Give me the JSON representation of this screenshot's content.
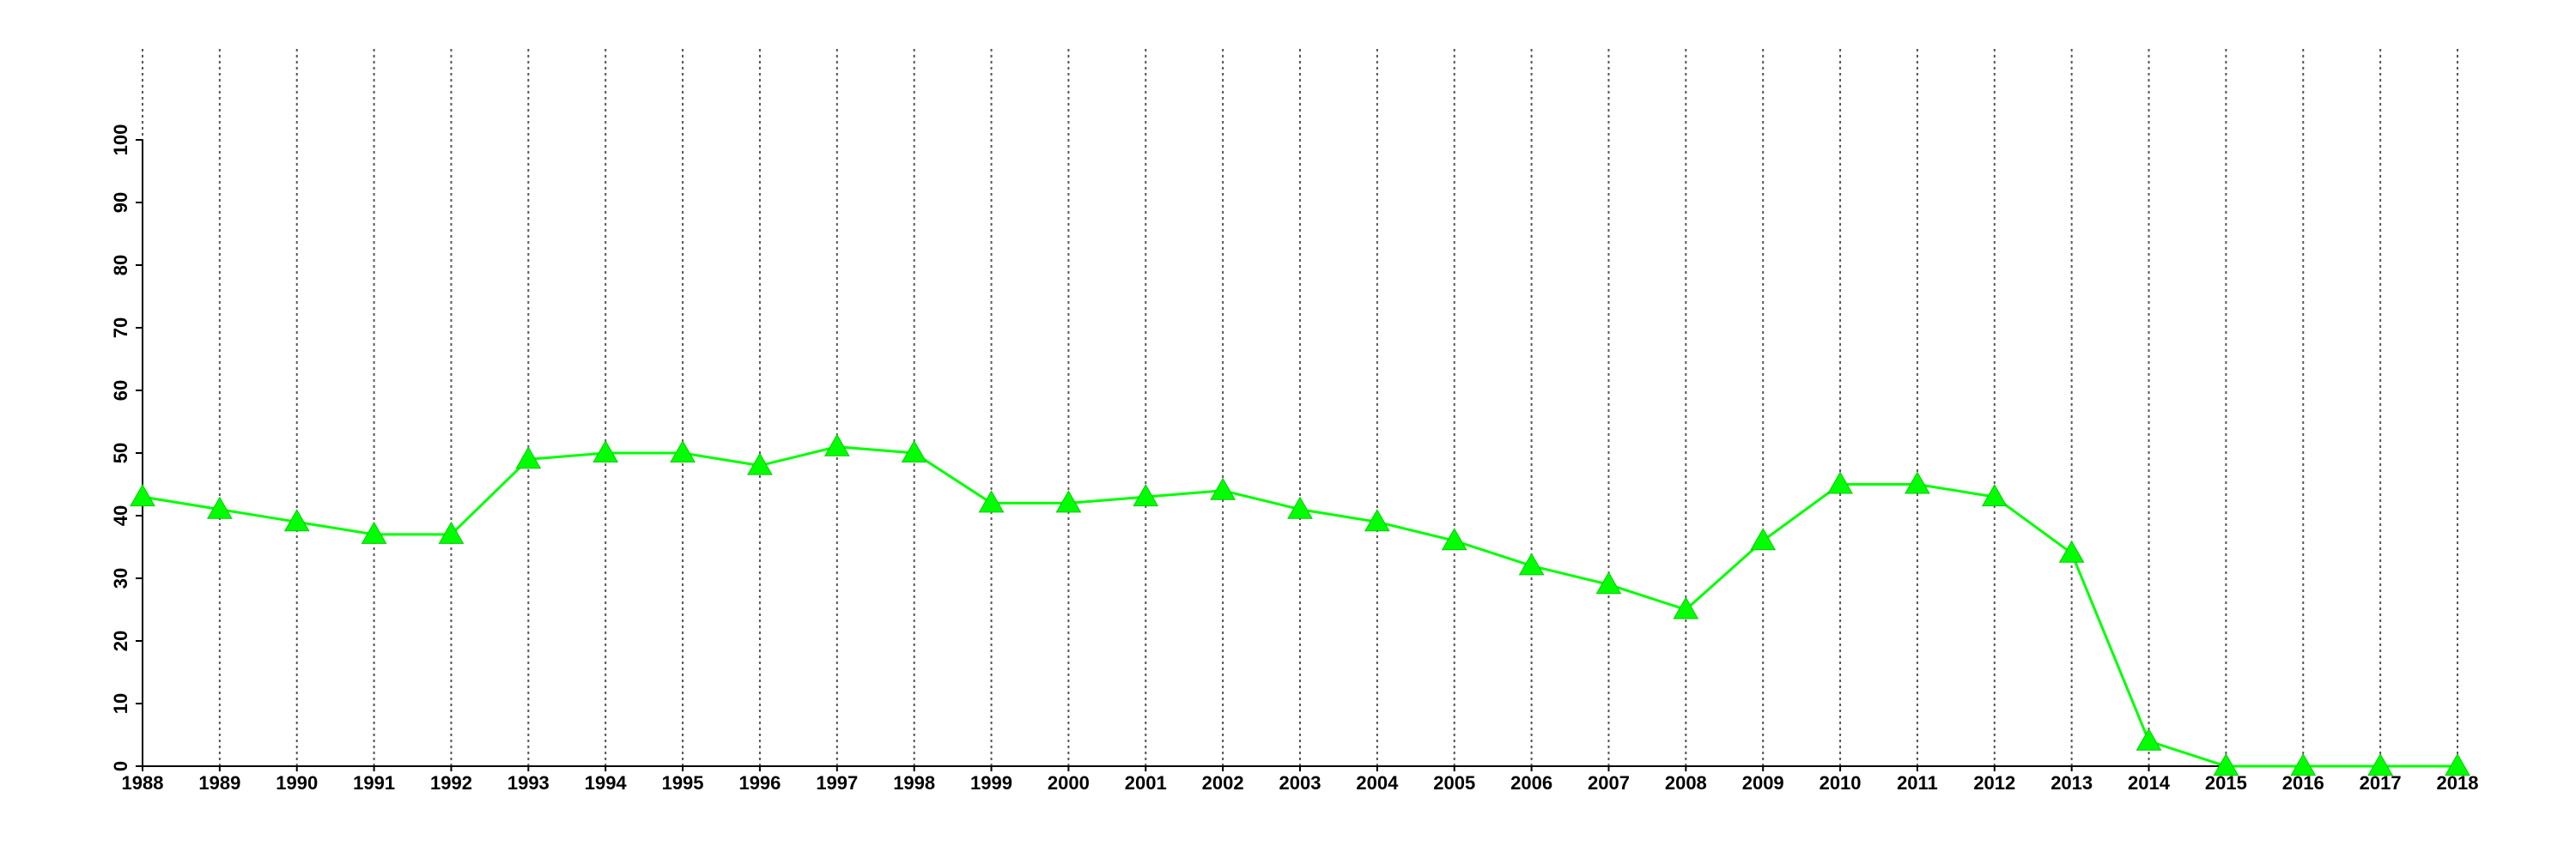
{
  "chart_data": {
    "type": "line",
    "x": [
      1988,
      1989,
      1990,
      1991,
      1992,
      1993,
      1994,
      1995,
      1996,
      1997,
      1998,
      1999,
      2000,
      2001,
      2002,
      2003,
      2004,
      2005,
      2006,
      2007,
      2008,
      2009,
      2010,
      2011,
      2012,
      2013,
      2014,
      2015,
      2016,
      2017,
      2018
    ],
    "series": [
      {
        "color": "#00ff00",
        "marker": "triangle",
        "values": [
          43,
          41,
          39,
          37,
          37,
          49,
          50,
          50,
          48,
          51,
          50,
          42,
          42,
          43,
          44,
          41,
          39,
          36,
          32,
          29,
          25,
          36,
          45,
          45,
          43,
          34,
          4,
          0,
          0,
          0,
          0
        ]
      }
    ],
    "xlim": [
      1988,
      2018
    ],
    "xticks": [
      1988,
      1989,
      1990,
      1991,
      1992,
      1993,
      1994,
      1995,
      1996,
      1997,
      1998,
      1999,
      2000,
      2001,
      2002,
      2003,
      2004,
      2005,
      2006,
      2007,
      2008,
      2009,
      2010,
      2011,
      2012,
      2013,
      2014,
      2015,
      2016,
      2017,
      2018
    ],
    "ylim": [
      0,
      100
    ],
    "yticks": [
      0,
      10,
      20,
      30,
      40,
      50,
      60,
      70,
      80,
      90,
      100
    ],
    "grid": "x"
  }
}
